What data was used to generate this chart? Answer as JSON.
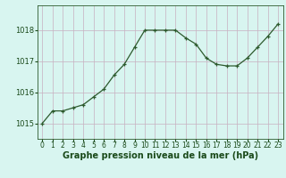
{
  "x": [
    0,
    1,
    2,
    3,
    4,
    5,
    6,
    7,
    8,
    9,
    10,
    11,
    12,
    13,
    14,
    15,
    16,
    17,
    18,
    19,
    20,
    21,
    22,
    23
  ],
  "y": [
    1015.0,
    1015.4,
    1015.4,
    1015.5,
    1015.6,
    1015.85,
    1016.1,
    1016.55,
    1016.9,
    1017.45,
    1018.0,
    1018.0,
    1018.0,
    1018.0,
    1017.75,
    1017.55,
    1017.1,
    1016.9,
    1016.85,
    1016.85,
    1017.1,
    1017.45,
    1017.8,
    1018.2
  ],
  "line_color": "#2d5a2d",
  "marker": "+",
  "marker_size": 3.5,
  "bg_color": "#d8f5f0",
  "grid_color": "#c8b0c0",
  "xlabel": "Graphe pression niveau de la mer (hPa)",
  "xlabel_fontsize": 7,
  "ylabel_ticks": [
    1015,
    1016,
    1017,
    1018
  ],
  "ylim": [
    1014.5,
    1018.8
  ],
  "xlim": [
    -0.5,
    23.5
  ],
  "tick_fontsize": 6,
  "label_color": "#1a4a1a",
  "axis_color": "#2d5a2d",
  "linewidth": 0.9
}
